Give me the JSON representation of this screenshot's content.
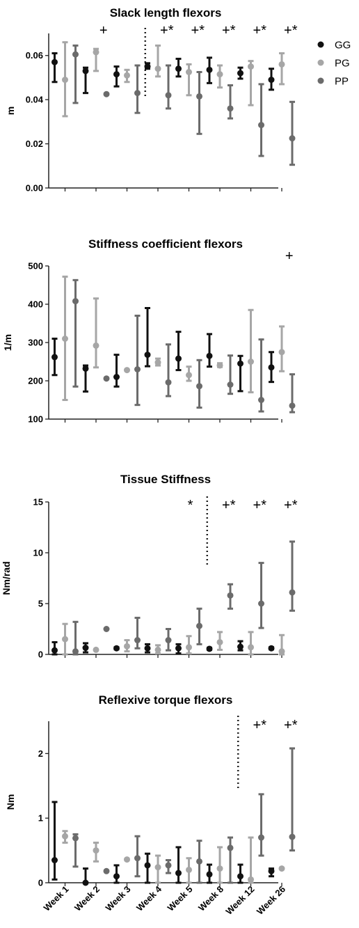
{
  "chart_data": {
    "type": "scatter",
    "categories": [
      "Week 1",
      "Week 2",
      "Week 3",
      "Week 4",
      "Week 5",
      "Week 8",
      "Week 12",
      "Week 26"
    ],
    "legend": {
      "placement": "top-right",
      "items": [
        {
          "name": "GG",
          "color": "#111111"
        },
        {
          "name": "PG",
          "color": "#a6a6a6"
        },
        {
          "name": "PP",
          "color": "#6b6b6b"
        }
      ]
    },
    "panels": [
      {
        "title": "Slack length flexors",
        "ylabel": "m",
        "ylim": [
          0,
          0.07
        ],
        "yticks": [
          0.0,
          0.02,
          0.04,
          0.06
        ],
        "ytick_labels": [
          "0.00",
          "0.02",
          "0.04",
          "0.06"
        ],
        "show_x_labels": false,
        "dotted_after_category": 2,
        "series": [
          {
            "name": "GG",
            "values": [
              0.057,
              0.053,
              0.0515,
              0.055,
              0.054,
              0.0535,
              0.052,
              0.049
            ],
            "lower": [
              0.048,
              0.043,
              0.046,
              0.054,
              0.0505,
              0.0475,
              0.0495,
              0.0445
            ],
            "upper": [
              0.061,
              0.0545,
              0.055,
              0.0565,
              0.0585,
              0.059,
              0.0545,
              0.054
            ]
          },
          {
            "name": "PG",
            "values": [
              0.049,
              0.0615,
              0.051,
              0.054,
              0.0525,
              0.0515,
              0.055,
              0.056
            ],
            "lower": [
              0.0325,
              0.053,
              0.048,
              0.0505,
              0.042,
              0.0455,
              0.0375,
              0.047
            ],
            "upper": [
              0.066,
              0.063,
              0.0535,
              0.0645,
              0.056,
              0.0555,
              0.0575,
              0.061
            ]
          },
          {
            "name": "PP",
            "values": [
              0.0605,
              0.0425,
              0.043,
              0.042,
              0.0415,
              0.036,
              0.0285,
              0.0225
            ],
            "lower": [
              0.0385,
              0.0425,
              0.034,
              0.036,
              0.0245,
              0.0315,
              0.0145,
              0.0105
            ],
            "upper": [
              0.0645,
              0.0425,
              0.0555,
              0.0555,
              0.0525,
              0.0465,
              0.047,
              0.039
            ]
          }
        ],
        "annotations": [
          {
            "category": 1,
            "text": "+"
          },
          {
            "category": 3,
            "text": "+*"
          },
          {
            "category": 4,
            "text": "+*"
          },
          {
            "category": 5,
            "text": "+*"
          },
          {
            "category": 6,
            "text": "+*"
          },
          {
            "category": 7,
            "text": "+*"
          }
        ]
      },
      {
        "title": "Stiffness coefficient flexors",
        "ylabel": "1/m",
        "ylim": [
          100,
          500
        ],
        "yticks": [
          100,
          200,
          300,
          400,
          500
        ],
        "ytick_labels": [
          "100",
          "200",
          "300",
          "400",
          "500"
        ],
        "show_x_labels": false,
        "dotted_after_category": null,
        "series": [
          {
            "name": "GG",
            "values": [
              262,
              232,
              210,
              268,
              258,
              265,
              245,
              235
            ],
            "lower": [
              215,
              172,
              185,
              238,
              228,
              237,
              173,
              197
            ],
            "upper": [
              310,
              240,
              268,
              390,
              328,
              322,
              265,
              275
            ]
          },
          {
            "name": "PG",
            "values": [
              310,
              292,
              228,
              248,
              215,
              240,
              250,
              275
            ],
            "lower": [
              150,
              235,
              228,
              240,
              200,
              236,
              170,
              225
            ],
            "upper": [
              472,
              415,
              228,
              258,
              237,
              246,
              385,
              342
            ]
          },
          {
            "name": "PP",
            "values": [
              408,
              206,
              230,
              196,
              186,
              190,
              150,
              135
            ],
            "lower": [
              185,
              206,
              137,
              160,
              130,
              166,
              120,
              118
            ],
            "upper": [
              463,
              206,
              370,
              295,
              254,
              266,
              308,
              217
            ]
          }
        ],
        "annotations": [
          {
            "category": 7,
            "text": "+"
          }
        ]
      },
      {
        "title": "Tissue Stiffness",
        "ylabel": "Nm/rad",
        "ylim": [
          0,
          15
        ],
        "yticks": [
          0,
          5,
          10,
          15
        ],
        "ytick_labels": [
          "0",
          "5",
          "10",
          "15"
        ],
        "show_x_labels": false,
        "dotted_after_category": 4,
        "series": [
          {
            "name": "GG",
            "values": [
              0.4,
              0.65,
              0.6,
              0.6,
              0.6,
              0.55,
              0.75,
              0.6
            ],
            "lower": [
              0.0,
              0.2,
              0.5,
              0.2,
              0.1,
              0.45,
              0.4,
              0.5
            ],
            "upper": [
              1.2,
              1.1,
              0.7,
              1.0,
              1.0,
              0.65,
              1.3,
              0.7
            ]
          },
          {
            "name": "PG",
            "values": [
              1.5,
              0.45,
              0.8,
              0.45,
              0.7,
              1.2,
              0.7,
              0.3
            ],
            "lower": [
              0.0,
              0.45,
              0.3,
              0.1,
              0.1,
              0.45,
              0.0,
              0.0
            ],
            "upper": [
              3.0,
              0.45,
              1.4,
              0.9,
              1.8,
              2.2,
              2.2,
              1.9
            ]
          },
          {
            "name": "PP",
            "values": [
              0.3,
              2.5,
              1.4,
              1.4,
              2.8,
              5.8,
              5.0,
              6.1
            ],
            "lower": [
              0.0,
              2.5,
              0.6,
              0.4,
              1.0,
              4.5,
              2.6,
              4.3
            ],
            "upper": [
              3.2,
              2.5,
              3.6,
              2.5,
              4.5,
              6.9,
              9.0,
              11.1
            ]
          }
        ],
        "annotations": [
          {
            "category": 5,
            "text": "*"
          },
          {
            "category": 5,
            "text": "+*"
          },
          {
            "category": 6,
            "text": "+*"
          },
          {
            "category": 7,
            "text": "+*"
          }
        ]
      },
      {
        "title": "Reflexive torque flexors",
        "ylabel": "Nm",
        "ylim": [
          0,
          2.5
        ],
        "yticks": [
          0,
          1,
          2
        ],
        "ytick_labels": [
          "0",
          "1",
          "2"
        ],
        "show_x_labels": true,
        "dotted_after_category": 5,
        "series": [
          {
            "name": "GG",
            "values": [
              0.35,
              0.0,
              0.1,
              0.27,
              0.15,
              0.13,
              0.1,
              0.18
            ],
            "lower": [
              0.05,
              0.0,
              0.0,
              0.0,
              0.0,
              0.0,
              0.0,
              0.1
            ],
            "upper": [
              1.25,
              0.22,
              0.27,
              0.45,
              0.55,
              0.28,
              0.28,
              0.22
            ]
          },
          {
            "name": "PG",
            "values": [
              0.72,
              0.5,
              0.36,
              0.24,
              0.2,
              0.22,
              0.05,
              0.22
            ],
            "lower": [
              0.62,
              0.33,
              0.36,
              0.0,
              0.0,
              0.0,
              0.0,
              0.22
            ],
            "upper": [
              0.8,
              0.62,
              0.36,
              0.42,
              0.38,
              0.55,
              0.7,
              0.22
            ]
          },
          {
            "name": "PP",
            "values": [
              0.69,
              0.18,
              0.38,
              0.27,
              0.33,
              0.54,
              0.7,
              0.71
            ],
            "lower": [
              0.25,
              0.18,
              0.1,
              0.15,
              0.0,
              0.0,
              0.42,
              0.5
            ],
            "upper": [
              0.75,
              0.18,
              0.72,
              0.35,
              0.65,
              0.7,
              1.37,
              2.08
            ]
          }
        ],
        "annotations": [
          {
            "category": 6,
            "text": "+*"
          },
          {
            "category": 7,
            "text": "+*"
          }
        ]
      }
    ]
  }
}
